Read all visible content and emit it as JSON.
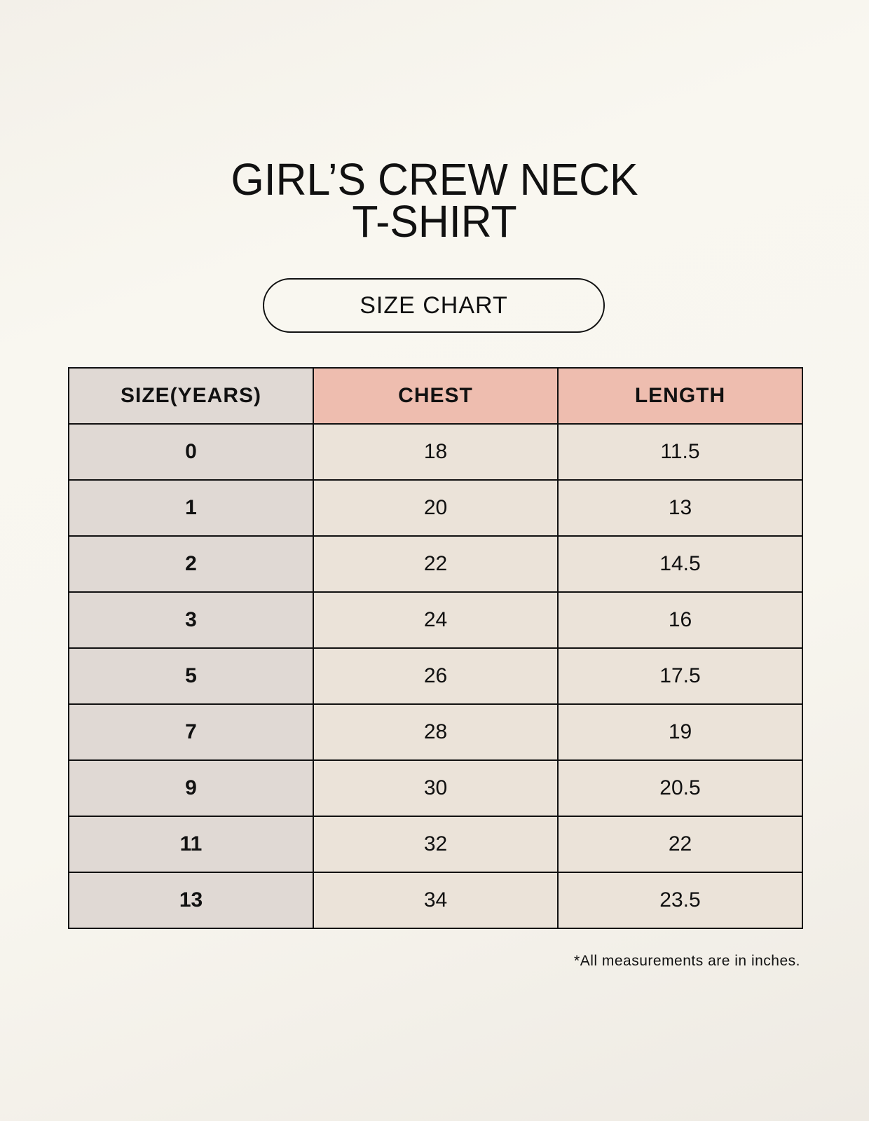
{
  "title_line1": "GIRL’S CREW NECK",
  "title_line2": "T-SHIRT",
  "badge": "SIZE CHART",
  "table": {
    "headers": [
      "SIZE(YEARS)",
      "CHEST",
      "LENGTH"
    ],
    "rows": [
      [
        "0",
        "18",
        "11.5"
      ],
      [
        "1",
        "20",
        "13"
      ],
      [
        "2",
        "22",
        "14.5"
      ],
      [
        "3",
        "24",
        "16"
      ],
      [
        "5",
        "26",
        "17.5"
      ],
      [
        "7",
        "28",
        "19"
      ],
      [
        "9",
        "30",
        "20.5"
      ],
      [
        "11",
        "32",
        "22"
      ],
      [
        "13",
        "34",
        "23.5"
      ]
    ]
  },
  "note": "*All measurements are in inches.",
  "colors": {
    "header_accent": "#eebdaf",
    "size_column": "#e0d9d4",
    "cell": "#ebe3d9"
  }
}
